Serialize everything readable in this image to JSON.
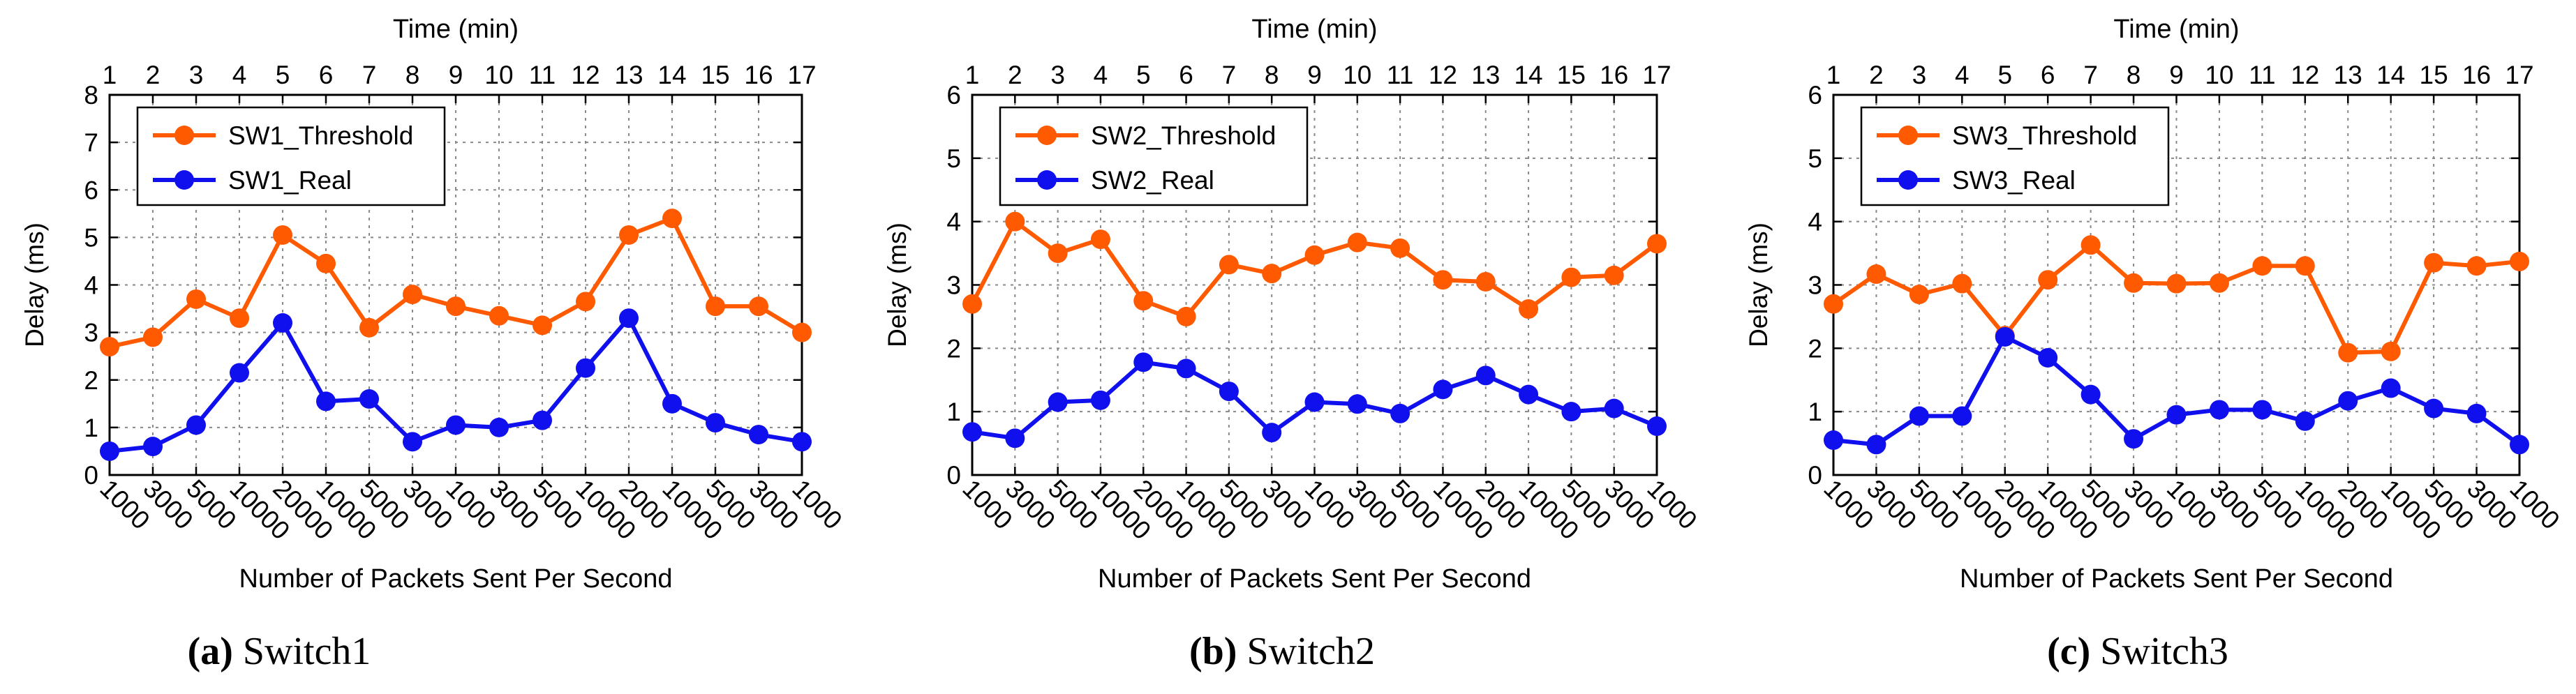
{
  "figure": {
    "panels": [
      {
        "caption_label": "(a)",
        "caption_text": "Switch1",
        "chart_index": 0
      },
      {
        "caption_label": "(b)",
        "caption_text": "Switch2",
        "chart_index": 1
      },
      {
        "caption_label": "(c)",
        "caption_text": "Switch3",
        "chart_index": 2
      }
    ]
  },
  "colors": {
    "threshold": "#ff5a00",
    "real": "#1010ee",
    "grid": "#888888",
    "axis": "#000000"
  },
  "chart_data": [
    {
      "type": "line",
      "title": "",
      "top_axis_label": "Time (min)",
      "top_ticks": [
        "1",
        "2",
        "3",
        "4",
        "5",
        "6",
        "7",
        "8",
        "9",
        "10",
        "11",
        "12",
        "13",
        "14",
        "15",
        "16",
        "17"
      ],
      "xlabel": "Number of Packets Sent Per Second",
      "categories": [
        "1000",
        "3000",
        "5000",
        "10000",
        "20000",
        "10000",
        "5000",
        "3000",
        "1000",
        "3000",
        "5000",
        "10000",
        "2000",
        "10000",
        "5000",
        "3000",
        "1000"
      ],
      "ylabel": "Delay (ms)",
      "ylim": [
        0,
        8
      ],
      "yticks": [
        0,
        1,
        2,
        3,
        4,
        5,
        6,
        7,
        8
      ],
      "grid": true,
      "legend_position": "top-left",
      "series": [
        {
          "name": "SW1_Threshold",
          "color_key": "threshold",
          "values": [
            2.7,
            2.9,
            3.7,
            3.3,
            5.05,
            4.45,
            3.1,
            3.8,
            3.55,
            3.35,
            3.15,
            3.65,
            5.05,
            5.4,
            3.55,
            3.55,
            3.0
          ]
        },
        {
          "name": "SW1_Real",
          "color_key": "real",
          "values": [
            0.5,
            0.6,
            1.05,
            2.15,
            3.2,
            1.55,
            1.6,
            0.7,
            1.05,
            1.0,
            1.15,
            2.25,
            3.3,
            1.5,
            1.1,
            0.85,
            0.7
          ]
        }
      ]
    },
    {
      "type": "line",
      "title": "",
      "top_axis_label": "Time (min)",
      "top_ticks": [
        "1",
        "2",
        "3",
        "4",
        "5",
        "6",
        "7",
        "8",
        "9",
        "10",
        "11",
        "12",
        "13",
        "14",
        "15",
        "16",
        "17"
      ],
      "xlabel": "Number of Packets Sent Per Second",
      "categories": [
        "1000",
        "3000",
        "5000",
        "10000",
        "20000",
        "10000",
        "5000",
        "3000",
        "1000",
        "3000",
        "5000",
        "10000",
        "2000",
        "10000",
        "5000",
        "3000",
        "1000"
      ],
      "ylabel": "Delay (ms)",
      "ylim": [
        0,
        6
      ],
      "yticks": [
        0,
        1,
        2,
        3,
        4,
        5,
        6
      ],
      "grid": true,
      "legend_position": "top-left",
      "series": [
        {
          "name": "SW2_Threshold",
          "color_key": "threshold",
          "values": [
            2.7,
            4.0,
            3.5,
            3.72,
            2.75,
            2.5,
            3.32,
            3.18,
            3.47,
            3.67,
            3.58,
            3.08,
            3.05,
            2.62,
            3.12,
            3.15,
            3.65
          ]
        },
        {
          "name": "SW2_Real",
          "color_key": "real",
          "values": [
            0.68,
            0.58,
            1.15,
            1.18,
            1.78,
            1.68,
            1.32,
            0.67,
            1.15,
            1.12,
            0.97,
            1.35,
            1.57,
            1.27,
            1.0,
            1.05,
            0.77
          ]
        }
      ]
    },
    {
      "type": "line",
      "title": "",
      "top_axis_label": "Time (min)",
      "top_ticks": [
        "1",
        "2",
        "3",
        "4",
        "5",
        "6",
        "7",
        "8",
        "9",
        "10",
        "11",
        "12",
        "13",
        "14",
        "15",
        "16",
        "17"
      ],
      "xlabel": "Number of Packets Sent Per Second",
      "categories": [
        "1000",
        "3000",
        "5000",
        "10000",
        "20000",
        "10000",
        "5000",
        "3000",
        "1000",
        "3000",
        "5000",
        "10000",
        "2000",
        "10000",
        "5000",
        "3000",
        "1000"
      ],
      "ylabel": "Delay (ms)",
      "ylim": [
        0,
        6
      ],
      "yticks": [
        0,
        1,
        2,
        3,
        4,
        5,
        6
      ],
      "grid": true,
      "legend_position": "top-left",
      "series": [
        {
          "name": "SW3_Threshold",
          "color_key": "threshold",
          "values": [
            2.7,
            3.17,
            2.85,
            3.02,
            2.2,
            3.08,
            3.63,
            3.03,
            3.02,
            3.03,
            3.3,
            3.3,
            1.93,
            1.95,
            3.35,
            3.3,
            3.37
          ]
        },
        {
          "name": "SW3_Real",
          "color_key": "real",
          "values": [
            0.55,
            0.48,
            0.93,
            0.93,
            2.18,
            1.85,
            1.27,
            0.57,
            0.95,
            1.03,
            1.03,
            0.85,
            1.17,
            1.37,
            1.05,
            0.97,
            0.48
          ]
        }
      ]
    }
  ]
}
